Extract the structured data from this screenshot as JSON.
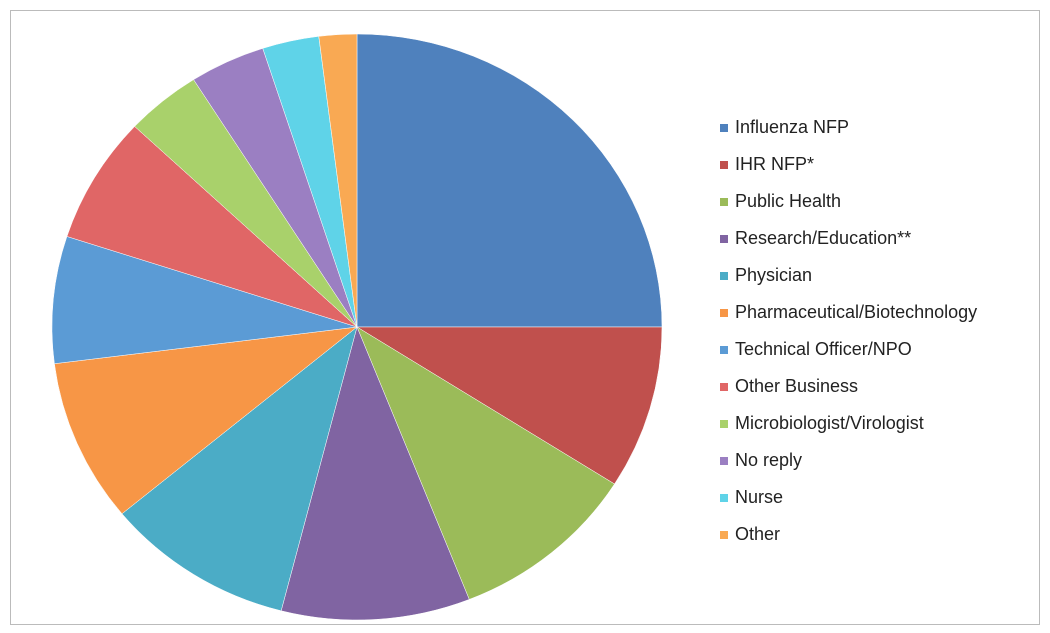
{
  "chart_data": {
    "type": "pie",
    "categories": [
      "Influenza NFP",
      "IHR NFP*",
      "Public Health",
      "Research/Education**",
      "Physician",
      "Pharmaceutical/Biotechnology",
      "Technical Officer/NPO",
      "Other Business",
      "Microbiologist/Virologist",
      "No reply",
      "Nurse",
      "Other"
    ],
    "values": [
      25,
      9,
      10,
      10,
      10,
      9,
      7,
      7,
      4,
      4,
      3,
      2
    ],
    "colors": [
      "#4f81bd",
      "#c0504d",
      "#9bbb59",
      "#8064a2",
      "#4bacc6",
      "#f79646",
      "#5b9bd5",
      "#e06666",
      "#a9d16b",
      "#9b7fc2",
      "#5fd3e8",
      "#f9a953"
    ],
    "legend": "right"
  }
}
